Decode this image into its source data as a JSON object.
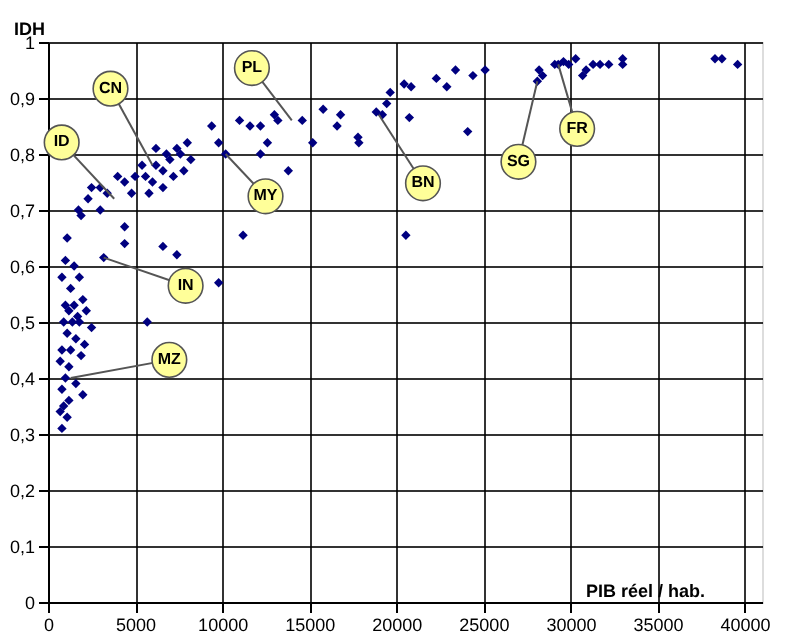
{
  "chart_data": {
    "type": "scatter",
    "xlabel": "PIB réel / hab.",
    "ylabel": "IDH",
    "xlim": [
      0,
      41000
    ],
    "ylim": [
      0,
      1
    ],
    "xticks": [
      0,
      5000,
      10000,
      15000,
      20000,
      25000,
      30000,
      35000,
      40000
    ],
    "yticks": [
      0,
      {
        "value": 0.1,
        "label": "0,1"
      },
      {
        "value": 0.2,
        "label": "0,2"
      },
      {
        "value": 0.3,
        "label": "0,3"
      },
      {
        "value": 0.4,
        "label": "0,4"
      },
      {
        "value": 0.5,
        "label": "0,5"
      },
      {
        "value": 0.6,
        "label": "0,6"
      },
      {
        "value": 0.7,
        "label": "0,7"
      },
      {
        "value": 0.8,
        "label": "0,8"
      },
      {
        "value": 0.9,
        "label": "0,9"
      },
      1
    ],
    "grid": true,
    "marker": "diamond",
    "series": [
      {
        "color": "#000080",
        "x": [
          1100,
          1000,
          1500,
          800,
          1800,
          1300,
          1000,
          1500,
          2000,
          1200,
          1700,
          2200,
          900,
          1400,
          1800,
          2500,
          1100,
          1600,
          2100,
          800,
          1300,
          1900,
          700,
          1200,
          1000,
          1600,
          800,
          2000,
          1200,
          900,
          700,
          1100,
          800,
          5700,
          3200,
          4400,
          6600,
          7400,
          9800,
          11200,
          20550,
          1750,
          2300,
          1900,
          3000,
          3400,
          4400,
          4000,
          5000,
          4800,
          5800,
          6600,
          5400,
          6200,
          7000,
          7400,
          8000,
          8200,
          7200,
          7800,
          6000,
          6600,
          5600,
          4400,
          3000,
          2500,
          6200,
          6800,
          7600,
          9400,
          9800,
          10200,
          11000,
          11600,
          12200,
          12600,
          12200,
          13000,
          13200,
          13800,
          14600,
          15200,
          15800,
          16600,
          16800,
          17800,
          17850,
          18850,
          19200,
          19450,
          19650,
          20450,
          20850,
          20750,
          22300,
          22900,
          23400,
          24100,
          24400,
          25100,
          28100,
          28200,
          28400,
          29100,
          29300,
          29600,
          29900,
          30300,
          30700,
          30900,
          31300,
          31700,
          32200,
          33000,
          33000,
          38300,
          38700,
          39600
        ],
        "values": [
          0.65,
          0.61,
          0.6,
          0.58,
          0.58,
          0.56,
          0.53,
          0.53,
          0.54,
          0.52,
          0.51,
          0.52,
          0.5,
          0.5,
          0.5,
          0.49,
          0.48,
          0.47,
          0.46,
          0.45,
          0.45,
          0.44,
          0.43,
          0.42,
          0.4,
          0.39,
          0.38,
          0.37,
          0.36,
          0.35,
          0.34,
          0.33,
          0.31,
          0.5,
          0.615,
          0.64,
          0.635,
          0.62,
          0.57,
          0.655,
          0.655,
          0.7,
          0.72,
          0.69,
          0.7,
          0.73,
          0.67,
          0.76,
          0.76,
          0.73,
          0.73,
          0.74,
          0.78,
          0.78,
          0.79,
          0.81,
          0.82,
          0.79,
          0.76,
          0.77,
          0.75,
          0.77,
          0.76,
          0.75,
          0.74,
          0.74,
          0.81,
          0.8,
          0.8,
          0.85,
          0.82,
          0.8,
          0.86,
          0.85,
          0.85,
          0.82,
          0.8,
          0.87,
          0.86,
          0.77,
          0.86,
          0.82,
          0.88,
          0.85,
          0.87,
          0.83,
          0.82,
          0.875,
          0.87,
          0.89,
          0.91,
          0.925,
          0.92,
          0.865,
          0.935,
          0.92,
          0.95,
          0.84,
          0.94,
          0.95,
          0.93,
          0.95,
          0.94,
          0.96,
          0.96,
          0.965,
          0.96,
          0.97,
          0.94,
          0.95,
          0.96,
          0.96,
          0.96,
          0.97,
          0.96,
          0.97,
          0.97,
          0.96
        ]
      }
    ],
    "annotations": [
      {
        "text": "CN",
        "x": 6000,
        "y": 0.78
      },
      {
        "text": "ID",
        "x": 3800,
        "y": 0.72
      },
      {
        "text": "PL",
        "x": 14000,
        "y": 0.86
      },
      {
        "text": "MY",
        "x": 10200,
        "y": 0.8
      },
      {
        "text": "BN",
        "x": 19000,
        "y": 0.87
      },
      {
        "text": "SG",
        "x": 28100,
        "y": 0.93
      },
      {
        "text": "FR",
        "x": 29300,
        "y": 0.96
      },
      {
        "text": "IN",
        "x": 3200,
        "y": 0.615
      },
      {
        "text": "MZ",
        "x": 1300,
        "y": 0.4
      }
    ]
  }
}
